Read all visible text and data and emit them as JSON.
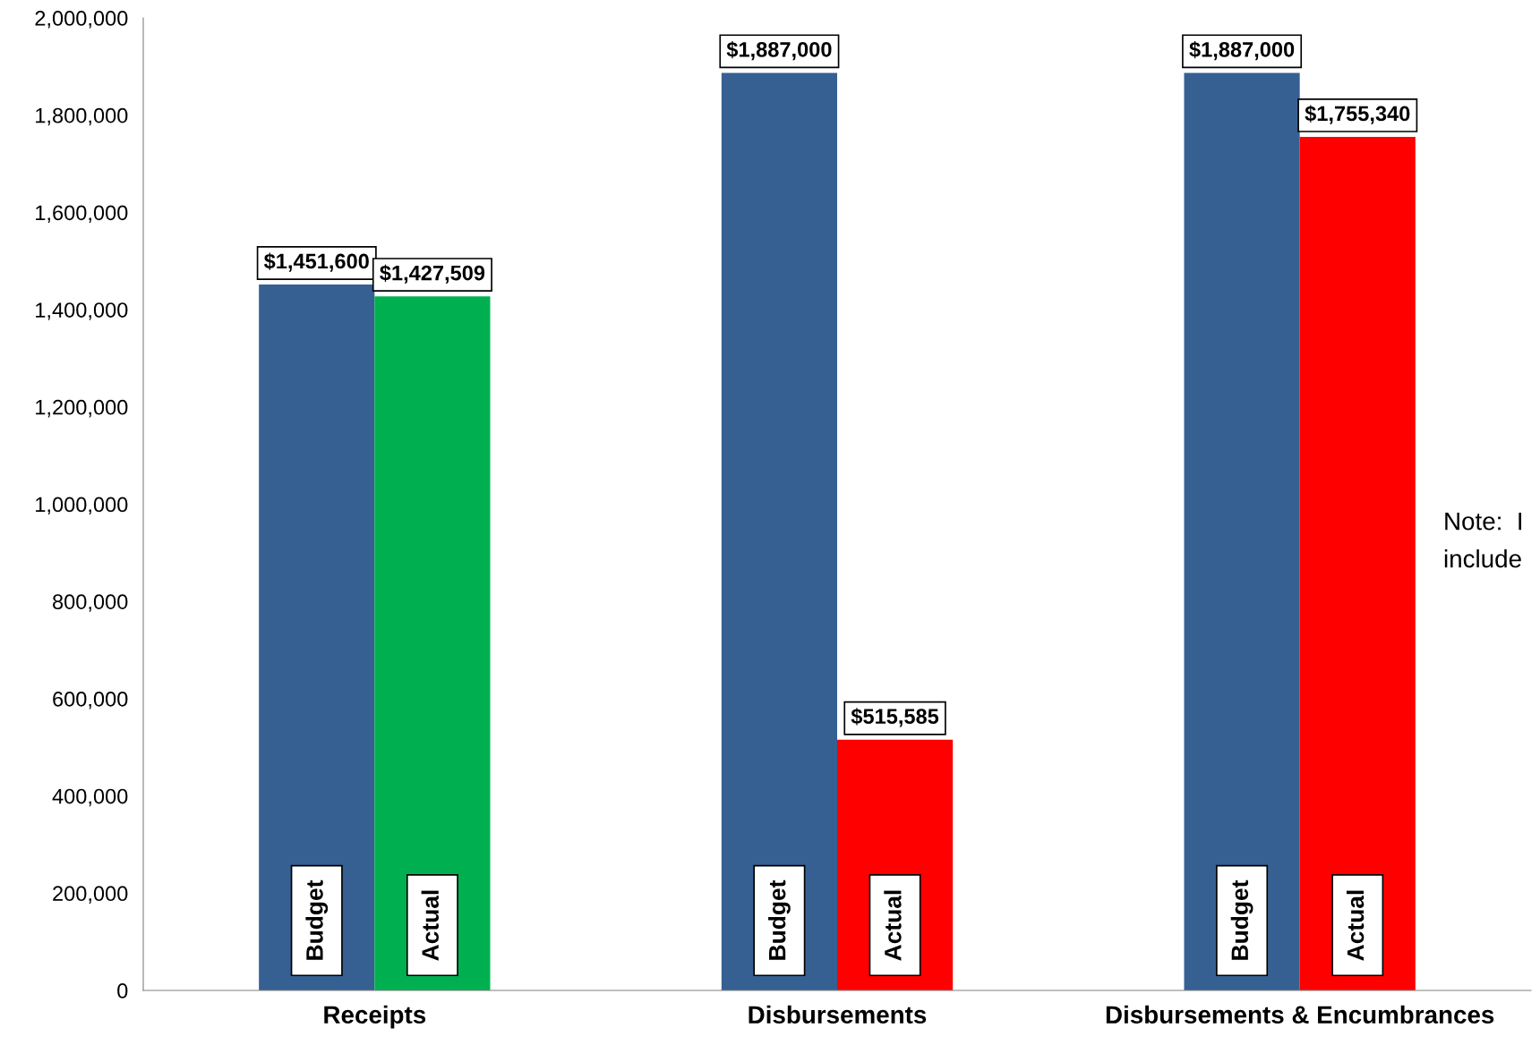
{
  "chart_data": {
    "type": "bar",
    "categories": [
      "Receipts",
      "Disbursements",
      "Disbursements & Encumbrances"
    ],
    "series": [
      {
        "name": "Budget",
        "color": "#366092",
        "values": [
          1451600,
          1887000,
          1887000
        ],
        "value_labels": [
          "$1,451,600",
          "$1,887,000",
          "$1,887,000"
        ]
      },
      {
        "name": "Actual",
        "colors": [
          "#00b050",
          "#ff0000",
          "#ff0000"
        ],
        "values": [
          1427509,
          515585,
          1755340
        ],
        "value_labels": [
          "$1,427,509",
          "$515,585",
          "$1,755,340"
        ]
      }
    ],
    "ylim": [
      0,
      2000000
    ],
    "yticks": [
      {
        "value": 0,
        "label": "0"
      },
      {
        "value": 200000,
        "label": "200,000"
      },
      {
        "value": 400000,
        "label": "400,000"
      },
      {
        "value": 600000,
        "label": "600,000"
      },
      {
        "value": 800000,
        "label": "800,000"
      },
      {
        "value": 1000000,
        "label": "1,000,000"
      },
      {
        "value": 1200000,
        "label": "1,200,000"
      },
      {
        "value": 1400000,
        "label": "1,400,000"
      },
      {
        "value": 1600000,
        "label": "1,600,000"
      },
      {
        "value": 1800000,
        "label": "1,800,000"
      },
      {
        "value": 2000000,
        "label": "2,000,000"
      }
    ],
    "annotations": [
      "Note:  I",
      "include"
    ],
    "grid": false,
    "legend": false
  }
}
